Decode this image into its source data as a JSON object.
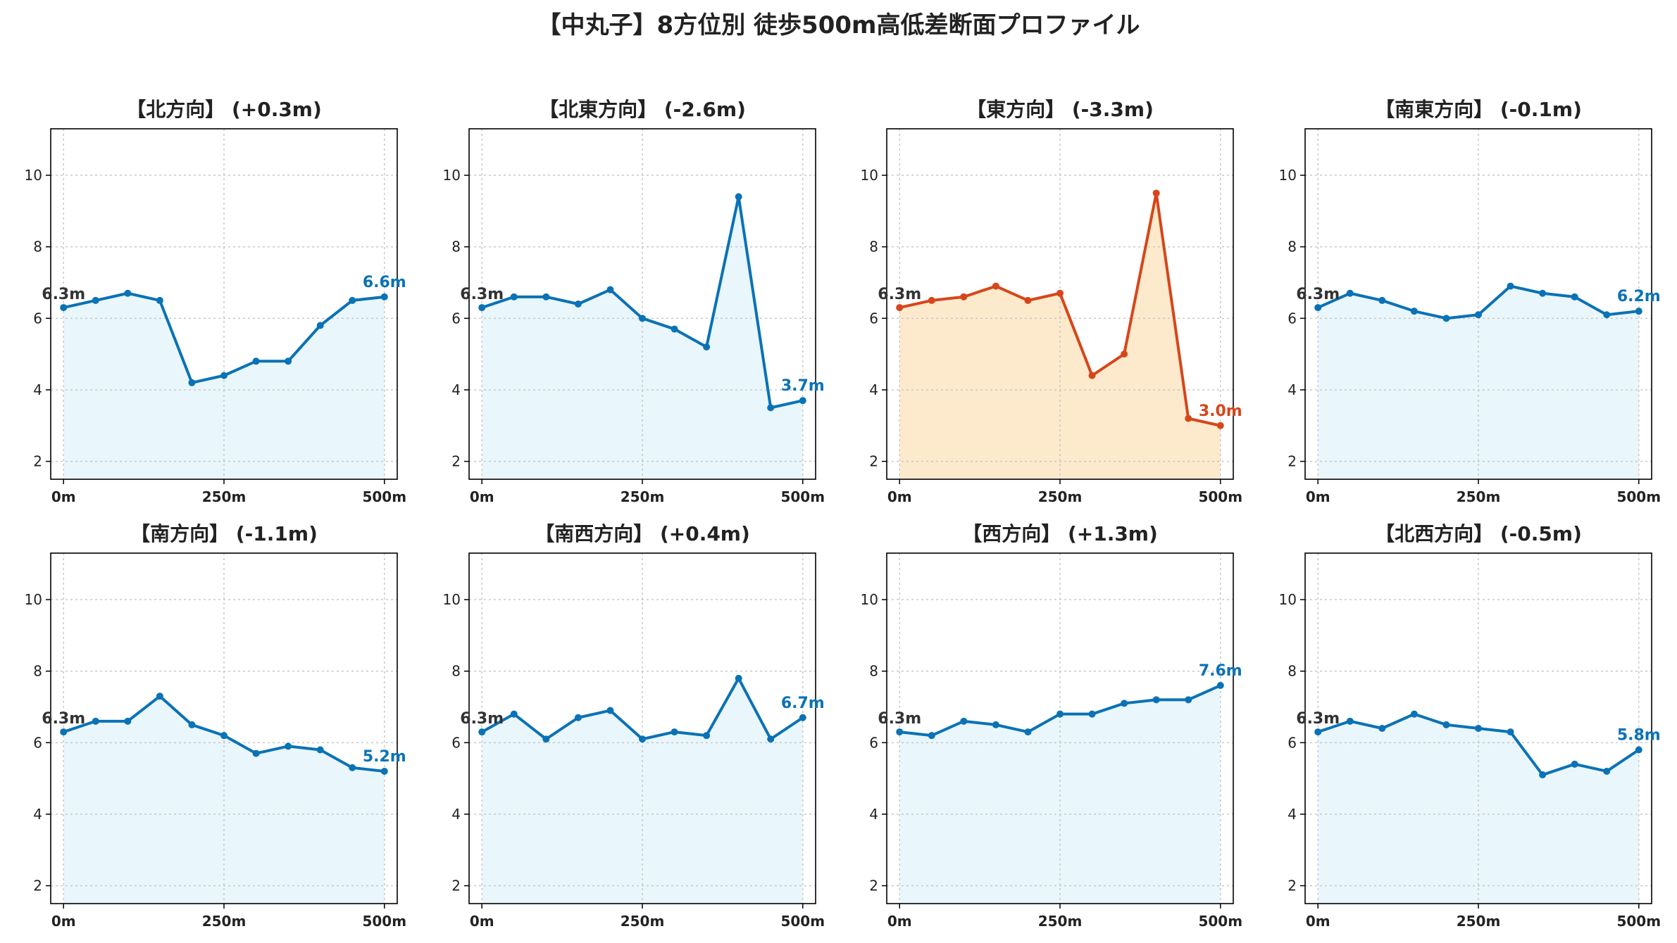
{
  "title": "【中丸子】8方位別 徒歩500m高低差断面プロファイル",
  "colors": {
    "normal_line": "#0a72b5",
    "normal_fill": "#e9f6fb",
    "highlight_line": "#d6461a",
    "highlight_fill": "#fde9cc",
    "start_label": "#333333"
  },
  "chart_data": [
    {
      "type": "area",
      "title": "【北方向】 (+0.3m)",
      "x": [
        0,
        50,
        100,
        150,
        200,
        250,
        300,
        350,
        400,
        450,
        500
      ],
      "values": [
        6.3,
        6.5,
        6.7,
        6.5,
        4.2,
        4.4,
        4.8,
        4.8,
        5.8,
        6.5,
        6.6
      ],
      "start_label": "6.3m",
      "end_label": "6.6m",
      "highlight": false
    },
    {
      "type": "area",
      "title": "【北東方向】 (-2.6m)",
      "x": [
        0,
        50,
        100,
        150,
        200,
        250,
        300,
        350,
        400,
        450,
        500
      ],
      "values": [
        6.3,
        6.6,
        6.6,
        6.4,
        6.8,
        6.0,
        5.7,
        5.2,
        9.4,
        3.5,
        3.7
      ],
      "start_label": "6.3m",
      "end_label": "3.7m",
      "highlight": false
    },
    {
      "type": "area",
      "title": "【東方向】 (-3.3m)",
      "x": [
        0,
        50,
        100,
        150,
        200,
        250,
        300,
        350,
        400,
        450,
        500
      ],
      "values": [
        6.3,
        6.5,
        6.6,
        6.9,
        6.5,
        6.7,
        4.4,
        5.0,
        9.5,
        3.2,
        3.0
      ],
      "start_label": "6.3m",
      "end_label": "3.0m",
      "highlight": true
    },
    {
      "type": "area",
      "title": "【南東方向】 (-0.1m)",
      "x": [
        0,
        50,
        100,
        150,
        200,
        250,
        300,
        350,
        400,
        450,
        500
      ],
      "values": [
        6.3,
        6.7,
        6.5,
        6.2,
        6.0,
        6.1,
        6.9,
        6.7,
        6.6,
        6.1,
        6.2
      ],
      "start_label": "6.3m",
      "end_label": "6.2m",
      "highlight": false
    },
    {
      "type": "area",
      "title": "【南方向】 (-1.1m)",
      "x": [
        0,
        50,
        100,
        150,
        200,
        250,
        300,
        350,
        400,
        450,
        500
      ],
      "values": [
        6.3,
        6.6,
        6.6,
        7.3,
        6.5,
        6.2,
        5.7,
        5.9,
        5.8,
        5.3,
        5.2
      ],
      "start_label": "6.3m",
      "end_label": "5.2m",
      "highlight": false
    },
    {
      "type": "area",
      "title": "【南西方向】 (+0.4m)",
      "x": [
        0,
        50,
        100,
        150,
        200,
        250,
        300,
        350,
        400,
        450,
        500
      ],
      "values": [
        6.3,
        6.8,
        6.1,
        6.7,
        6.9,
        6.1,
        6.3,
        6.2,
        7.8,
        6.1,
        6.7
      ],
      "start_label": "6.3m",
      "end_label": "6.7m",
      "highlight": false
    },
    {
      "type": "area",
      "title": "【西方向】 (+1.3m)",
      "x": [
        0,
        50,
        100,
        150,
        200,
        250,
        300,
        350,
        400,
        450,
        500
      ],
      "values": [
        6.3,
        6.2,
        6.6,
        6.5,
        6.3,
        6.8,
        6.8,
        7.1,
        7.2,
        7.2,
        7.6
      ],
      "start_label": "6.3m",
      "end_label": "7.6m",
      "highlight": false
    },
    {
      "type": "area",
      "title": "【北西方向】 (-0.5m)",
      "x": [
        0,
        50,
        100,
        150,
        200,
        250,
        300,
        350,
        400,
        450,
        500
      ],
      "values": [
        6.3,
        6.6,
        6.4,
        6.8,
        6.5,
        6.4,
        6.3,
        5.1,
        5.4,
        5.2,
        5.8
      ],
      "start_label": "6.3m",
      "end_label": "5.8m",
      "highlight": false
    }
  ],
  "axes": {
    "xlim": [
      -20,
      520
    ],
    "ylim": [
      1.5,
      11.3
    ],
    "x_ticks": [
      0,
      250,
      500
    ],
    "x_tick_labels": [
      "0m",
      "250m",
      "500m"
    ],
    "y_ticks": [
      2,
      4,
      6,
      8,
      10
    ],
    "y_tick_labels": [
      "2",
      "4",
      "6",
      "8",
      "10"
    ],
    "grid": true
  }
}
